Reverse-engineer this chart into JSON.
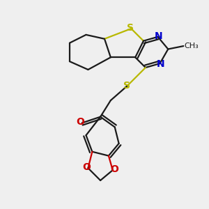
{
  "bg_color": "#efefef",
  "bond_color": "#1a1a1a",
  "S_color": "#b8b800",
  "N_color": "#0000cc",
  "O_color": "#cc0000",
  "line_width": 1.6,
  "font_size": 10,
  "fig_bg": "#efefef",
  "xlim": [
    0,
    10
  ],
  "ylim": [
    0,
    10
  ]
}
